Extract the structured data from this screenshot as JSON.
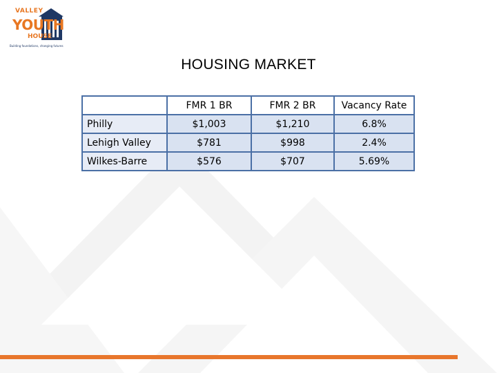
{
  "logo": {
    "word1": "VALLEY",
    "word2": "YOUTH",
    "word3": "HOUSE",
    "tagline": "Building foundations, changing futures",
    "brand_orange": "#e87722",
    "brand_navy": "#1f3864"
  },
  "title": "HOUSING MARKET",
  "table": {
    "headers": [
      "",
      "FMR 1 BR",
      "FMR 2 BR",
      "Vacancy Rate"
    ],
    "rows": [
      [
        "Philly",
        "$1,003",
        "$1,210",
        "6.8%"
      ],
      [
        "Lehigh Valley",
        "$781",
        "$998",
        "2.4%"
      ],
      [
        "Wilkes-Barre",
        "$576",
        "$707",
        "5.69%"
      ]
    ],
    "border_color": "#4a6fa5",
    "cell_fill": "#d9e2f1"
  },
  "footer": {
    "accent_color": "#e8762c"
  }
}
